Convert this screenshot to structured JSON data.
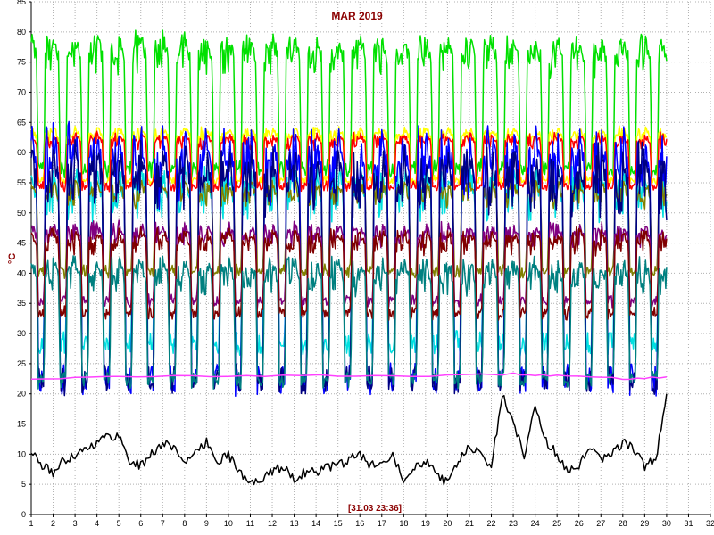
{
  "chart_data": {
    "type": "line",
    "title": "MAR 2019",
    "ylabel": "°C",
    "timestamp": "[31.03 23:36]",
    "xlim": [
      1,
      32
    ],
    "ylim": [
      0,
      85
    ],
    "x_ticks": [
      "1",
      "2",
      "3",
      "4",
      "5",
      "6",
      "7",
      "8",
      "9",
      "10",
      "11",
      "12",
      "13",
      "14",
      "15",
      "16",
      "17",
      "18",
      "19",
      "20",
      "21",
      "22",
      "23",
      "24",
      "25",
      "26",
      "27",
      "28",
      "29",
      "30",
      "31",
      "32"
    ],
    "y_ticks": [
      "0",
      "5",
      "10",
      "15",
      "20",
      "25",
      "30",
      "35",
      "40",
      "45",
      "50",
      "55",
      "60",
      "65",
      "70",
      "75",
      "80",
      "85"
    ],
    "grid": true,
    "series": [
      {
        "color": "#00e000",
        "daily_pattern": {
          "low": 57,
          "high": 79
        }
      },
      {
        "color": "#ffff00",
        "daily_pattern": {
          "low": 55,
          "high": 64
        }
      },
      {
        "color": "#ff0000",
        "daily_pattern": {
          "low": 54,
          "high": 63
        }
      },
      {
        "color": "#00e0e0",
        "daily_pattern": {
          "low": 28,
          "high": 57
        }
      },
      {
        "color": "#808000",
        "daily_pattern": {
          "low": 40,
          "high": 55
        }
      },
      {
        "color": "#0000ff",
        "daily_pattern": {
          "low": 22,
          "high": 63
        }
      },
      {
        "color": "#000080",
        "daily_pattern": {
          "low": 22,
          "high": 60
        }
      },
      {
        "color": "#800080",
        "daily_pattern": {
          "low": 35,
          "high": 48
        }
      },
      {
        "color": "#800000",
        "daily_pattern": {
          "low": 33,
          "high": 47
        }
      },
      {
        "color": "#008080",
        "daily_pattern": {
          "low": 22,
          "high": 42
        }
      },
      {
        "color": "#ff40ff",
        "x": [
          1,
          5,
          10,
          15,
          20,
          23,
          25,
          28,
          30
        ],
        "y": [
          22.5,
          22.8,
          23,
          23,
          23,
          23.3,
          23,
          22.5,
          22.8
        ]
      },
      {
        "color": "#000000",
        "x": [
          1,
          1.5,
          2,
          2.5,
          3,
          3.5,
          4,
          4.5,
          5,
          5.5,
          6,
          6.5,
          7,
          7.5,
          8,
          8.5,
          9,
          9.5,
          10,
          10.5,
          11,
          11.5,
          12,
          12.5,
          13,
          13.5,
          14,
          14.5,
          15,
          15.5,
          16,
          16.5,
          17,
          17.5,
          18,
          18.5,
          19,
          19.5,
          20,
          20.5,
          21,
          21.5,
          22,
          22.5,
          23,
          23.5,
          24,
          24.5,
          25,
          25.5,
          26,
          26.5,
          27,
          27.5,
          28,
          28.5,
          29,
          29.5,
          30
        ],
        "y": [
          10.5,
          8,
          7,
          9,
          10,
          11,
          12,
          13,
          13,
          9,
          8,
          10,
          12,
          11,
          9,
          10,
          12,
          9,
          10,
          7,
          5,
          6,
          7,
          8,
          6,
          7,
          7,
          8,
          8,
          9,
          10,
          8,
          9,
          10,
          6,
          8,
          9,
          7,
          5,
          9,
          11,
          10,
          8,
          20,
          15,
          10,
          18,
          12,
          10,
          7,
          8,
          11,
          9,
          10,
          12,
          11,
          8,
          9,
          20
        ]
      }
    ]
  }
}
